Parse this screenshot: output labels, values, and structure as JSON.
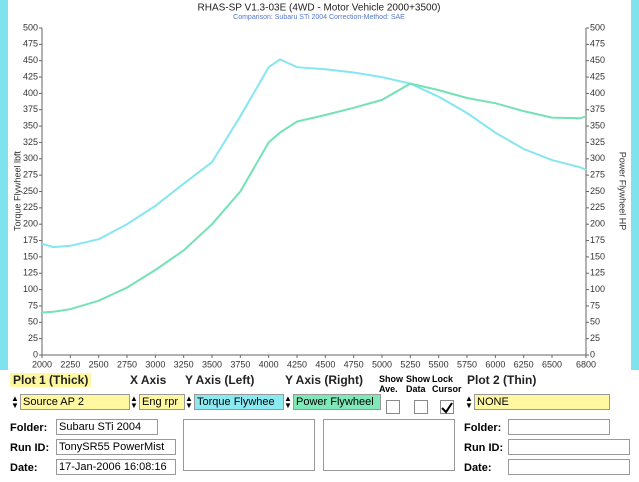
{
  "chart_data": {
    "type": "line",
    "title": "RHAS-SP V1.3-03E  (4WD - Motor Vehicle 2000+3500)",
    "subtitle": "Comparison: Subaru STi 2004      Correction-Method: SAE",
    "y_label": "Torque Flywheel lbft",
    "y2_label": "Power Flywheel HP",
    "x": [
      2000,
      2100,
      2250,
      2500,
      2750,
      3000,
      3250,
      3500,
      3750,
      4000,
      4100,
      4250,
      4500,
      4750,
      5000,
      5250,
      5500,
      5750,
      6000,
      6250,
      6500,
      6750,
      6800
    ],
    "series": [
      {
        "name": "Torque Flywheel",
        "color": "#86e6f0",
        "values": [
          170,
          165,
          167,
          177,
          200,
          228,
          262,
          295,
          365,
          440,
          452,
          440,
          437,
          432,
          425,
          415,
          395,
          370,
          340,
          315,
          298,
          287,
          283
        ]
      },
      {
        "name": "Power Flywheel",
        "color": "#74e2b4",
        "axis": "y2",
        "values": [
          65,
          66,
          70,
          83,
          103,
          130,
          160,
          200,
          250,
          325,
          340,
          357,
          367,
          378,
          390,
          415,
          405,
          393,
          385,
          373,
          363,
          362,
          365
        ]
      }
    ],
    "xlim": [
      2000,
      6800
    ],
    "xticks": [
      2000,
      2250,
      2500,
      2750,
      3000,
      3250,
      3500,
      3750,
      4000,
      4250,
      4500,
      4750,
      5000,
      5250,
      5500,
      5750,
      6000,
      6250,
      6500,
      6800
    ],
    "ylim": [
      0,
      500
    ],
    "yticks": [
      0,
      25,
      50,
      75,
      100,
      125,
      150,
      175,
      200,
      225,
      250,
      275,
      300,
      325,
      350,
      375,
      400,
      425,
      450,
      475,
      500
    ],
    "y2lim": [
      0,
      500
    ],
    "y2ticks": [
      0,
      25,
      50,
      75,
      100,
      125,
      150,
      175,
      200,
      225,
      250,
      275,
      300,
      325,
      350,
      375,
      400,
      425,
      450,
      475,
      500
    ],
    "grid": false
  },
  "panel": {
    "headers": {
      "plot1": "Plot 1 (Thick)",
      "x_axis": "X Axis",
      "y_left": "Y Axis (Left)",
      "y_right": "Y Axis (Right)",
      "show_ave": "Show Ave.",
      "show_data": "Show Data",
      "lock_cursor": "Lock Cursor",
      "plot2": "Plot 2 (Thin)"
    },
    "plot1_source": "Source AP 2",
    "x_axis_value": "Eng rpr",
    "y_left_value": "Torque Flywhee",
    "y_right_value": "Power Flywheel",
    "plot2_source": "NONE",
    "plot1_info": {
      "folder_label": "Folder:",
      "folder": "Subaru STi 2004",
      "run_label": "Run ID:",
      "run": "TonySR55 PowerMist",
      "date_label": "Date:",
      "date": "17-Jan-2006  16:08:16"
    },
    "plot2_info": {
      "folder_label": "Folder:",
      "run_label": "Run ID:",
      "date_label": "Date:"
    }
  }
}
